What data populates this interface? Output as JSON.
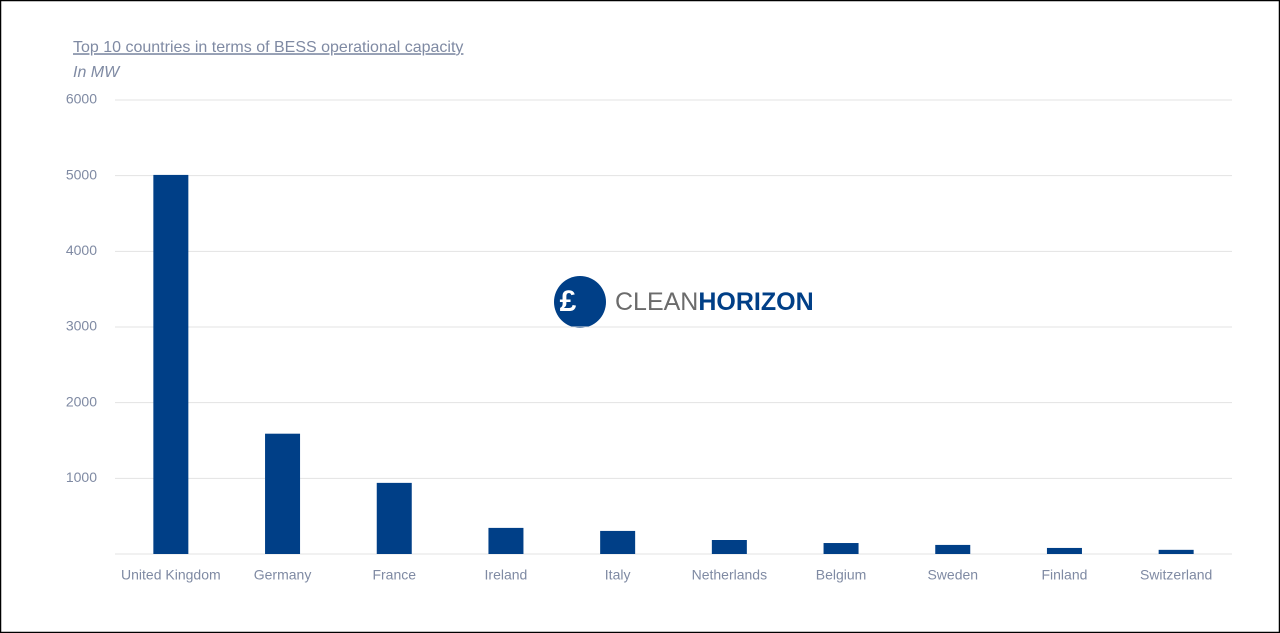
{
  "chart_data": {
    "type": "bar",
    "title": "Top 10 countries in terms of BESS operational capacity",
    "subtitle": "In MW",
    "categories": [
      "United Kingdom",
      "Germany",
      "France",
      "Ireland",
      "Italy",
      "Netherlands",
      "Belgium",
      "Sweden",
      "Finland",
      "Switzerland"
    ],
    "values": [
      5010,
      1590,
      940,
      345,
      305,
      185,
      145,
      120,
      80,
      55
    ],
    "color": "#003f87",
    "ylim": [
      0,
      6000
    ],
    "yticks": [
      1000,
      2000,
      3000,
      4000,
      5000,
      6000
    ],
    "grid": true,
    "watermark": {
      "light": "CLEAN",
      "bold": "HORIZON"
    }
  }
}
